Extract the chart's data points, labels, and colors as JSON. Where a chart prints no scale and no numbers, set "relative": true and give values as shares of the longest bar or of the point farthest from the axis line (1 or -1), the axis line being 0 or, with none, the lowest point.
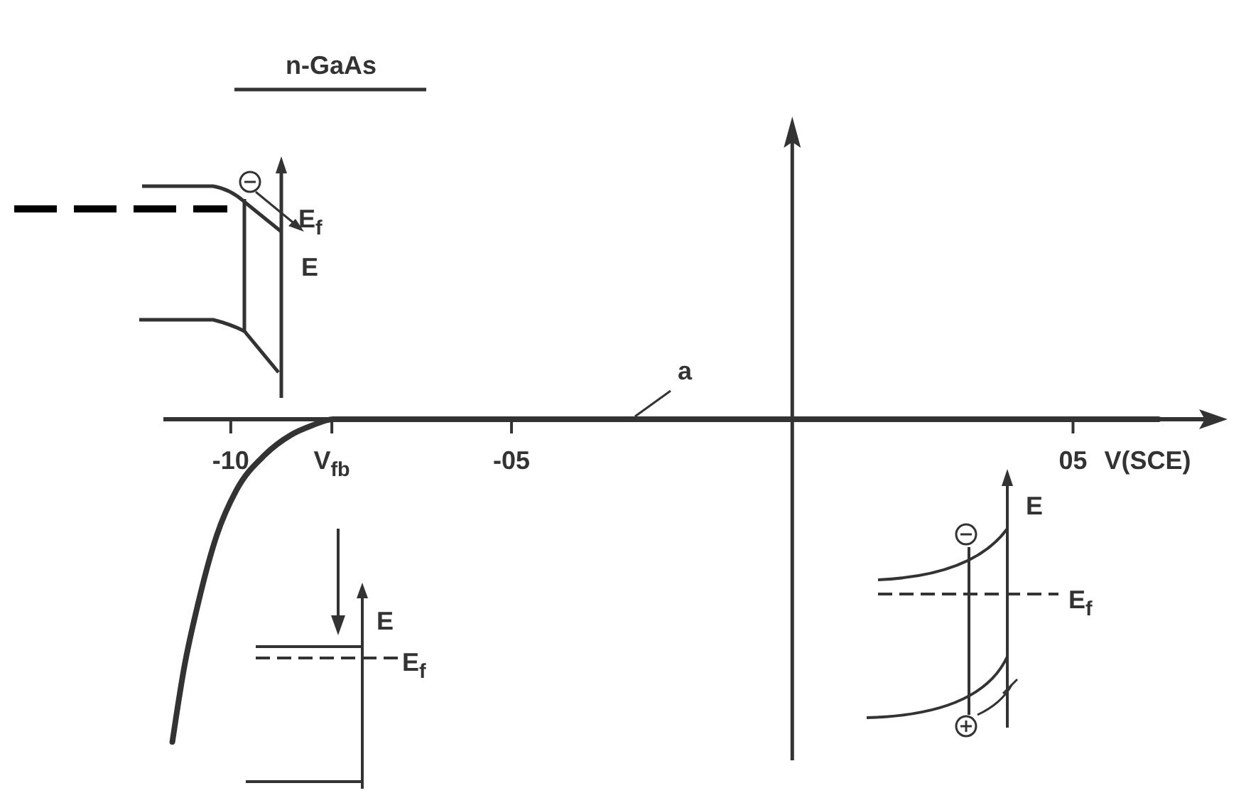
{
  "chart_data": {
    "type": "line",
    "title": "n-GaAs",
    "xlabel": "V(SCE)",
    "relative": true,
    "xlim": [
      -11.2,
      7.6
    ],
    "xticks": [
      {
        "value": -10,
        "label": "-10"
      },
      {
        "value": -8.2,
        "label": "V$_{fb}$"
      },
      {
        "value": -5,
        "label": "-05"
      },
      {
        "value": 5,
        "label": "05"
      }
    ],
    "series": [
      {
        "color": "#333333",
        "x": [
          -11.04,
          -10.83,
          -10.58,
          -10.25,
          -9.9,
          -9.39,
          -8.94,
          -8.56,
          -8.18,
          6.52
        ],
        "values": [
          -1,
          -0.77,
          -0.57,
          -0.36,
          -0.22,
          -0.11,
          -0.05,
          -0.02,
          0,
          0
        ]
      }
    ],
    "annotations": [
      {
        "text": "a",
        "x": -2.8,
        "y": 0
      },
      "E$_{f}$",
      "E",
      "E",
      "E$_{f}$",
      "E",
      "E$_{f}$"
    ],
    "marker": "none",
    "line_style": "solid",
    "grid": false
  }
}
